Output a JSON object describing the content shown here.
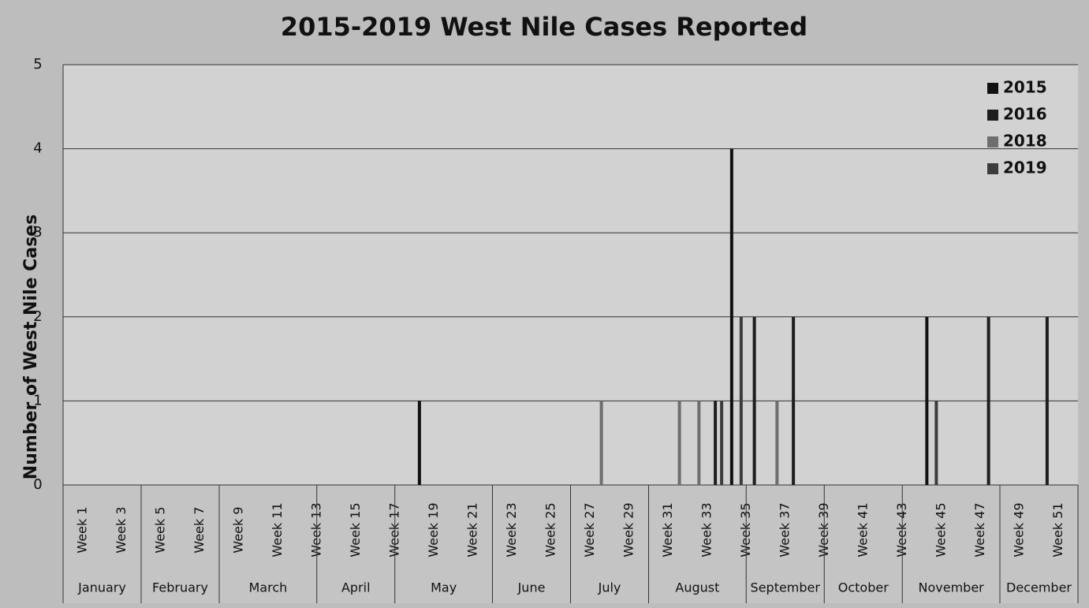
{
  "chart_data": {
    "type": "bar",
    "title": "2015-2019 West Nile Cases Reported",
    "y_label": "Number of West Nile Cases",
    "categories": [
      "Week 1",
      null,
      "Week 3",
      null,
      "Week 5",
      null,
      "Week 7",
      null,
      "Week 9",
      null,
      "Week 11",
      null,
      "Week 13",
      null,
      "Week 15",
      null,
      "Week 17",
      null,
      "Week 19",
      null,
      "Week 21",
      null,
      "Week 23",
      null,
      "Week 25",
      null,
      "Week 27",
      null,
      "Week 29",
      null,
      "Week 31",
      null,
      "Week 33",
      null,
      "Week 35",
      null,
      "Week 37",
      null,
      "Week 39",
      null,
      "Week 41",
      null,
      "Week 43",
      null,
      "Week 45",
      null,
      "Week 47",
      null,
      "Week 49",
      null,
      "Week 51",
      null
    ],
    "months": [
      {
        "name": "January",
        "weeks": 4
      },
      {
        "name": "February",
        "weeks": 4
      },
      {
        "name": "March",
        "weeks": 5
      },
      {
        "name": "April",
        "weeks": 4
      },
      {
        "name": "May",
        "weeks": 5
      },
      {
        "name": "June",
        "weeks": 4
      },
      {
        "name": "July",
        "weeks": 4
      },
      {
        "name": "August",
        "weeks": 5
      },
      {
        "name": "September",
        "weeks": 4
      },
      {
        "name": "October",
        "weeks": 4
      },
      {
        "name": "November",
        "weeks": 5
      },
      {
        "name": "December",
        "weeks": 4
      }
    ],
    "series": [
      {
        "name": "2015",
        "color": "#111111",
        "values": [
          0,
          0,
          0,
          0,
          0,
          0,
          0,
          0,
          0,
          0,
          0,
          0,
          0,
          0,
          0,
          0,
          0,
          0,
          1,
          0,
          0,
          0,
          0,
          0,
          0,
          0,
          0,
          0,
          0,
          0,
          0,
          0,
          0,
          0,
          4,
          0,
          0,
          0,
          0,
          0,
          0,
          0,
          0,
          0,
          2,
          0,
          0,
          0,
          0,
          0,
          0,
          0
        ]
      },
      {
        "name": "2016",
        "color": "#1e1e1e",
        "values": [
          0,
          0,
          0,
          0,
          0,
          0,
          0,
          0,
          0,
          0,
          0,
          0,
          0,
          0,
          0,
          0,
          0,
          0,
          0,
          0,
          0,
          0,
          0,
          0,
          0,
          0,
          0,
          0,
          0,
          0,
          0,
          0,
          0,
          1,
          0,
          2,
          0,
          2,
          0,
          0,
          0,
          0,
          0,
          0,
          0,
          0,
          0,
          2,
          0,
          0,
          2,
          0
        ]
      },
      {
        "name": "2018",
        "color": "#6e6e6e",
        "values": [
          0,
          0,
          0,
          0,
          0,
          0,
          0,
          0,
          0,
          0,
          0,
          0,
          0,
          0,
          0,
          0,
          0,
          0,
          0,
          0,
          0,
          0,
          0,
          0,
          0,
          0,
          0,
          1,
          0,
          0,
          0,
          1,
          1,
          0,
          0,
          0,
          1,
          0,
          0,
          0,
          0,
          0,
          0,
          0,
          0,
          0,
          0,
          0,
          0,
          0,
          0,
          0
        ]
      },
      {
        "name": "2019",
        "color": "#3c3c3c",
        "values": [
          0,
          0,
          0,
          0,
          0,
          0,
          0,
          0,
          0,
          0,
          0,
          0,
          0,
          0,
          0,
          0,
          0,
          0,
          0,
          0,
          0,
          0,
          0,
          0,
          0,
          0,
          0,
          0,
          0,
          0,
          0,
          0,
          0,
          1,
          2,
          0,
          0,
          0,
          0,
          0,
          0,
          0,
          0,
          0,
          1,
          0,
          0,
          0,
          0,
          0,
          0,
          0
        ]
      }
    ],
    "ylim": [
      0,
      5
    ],
    "yticks": [
      0,
      1,
      2,
      3,
      4,
      5
    ],
    "grid": true,
    "legend": "top-right"
  }
}
